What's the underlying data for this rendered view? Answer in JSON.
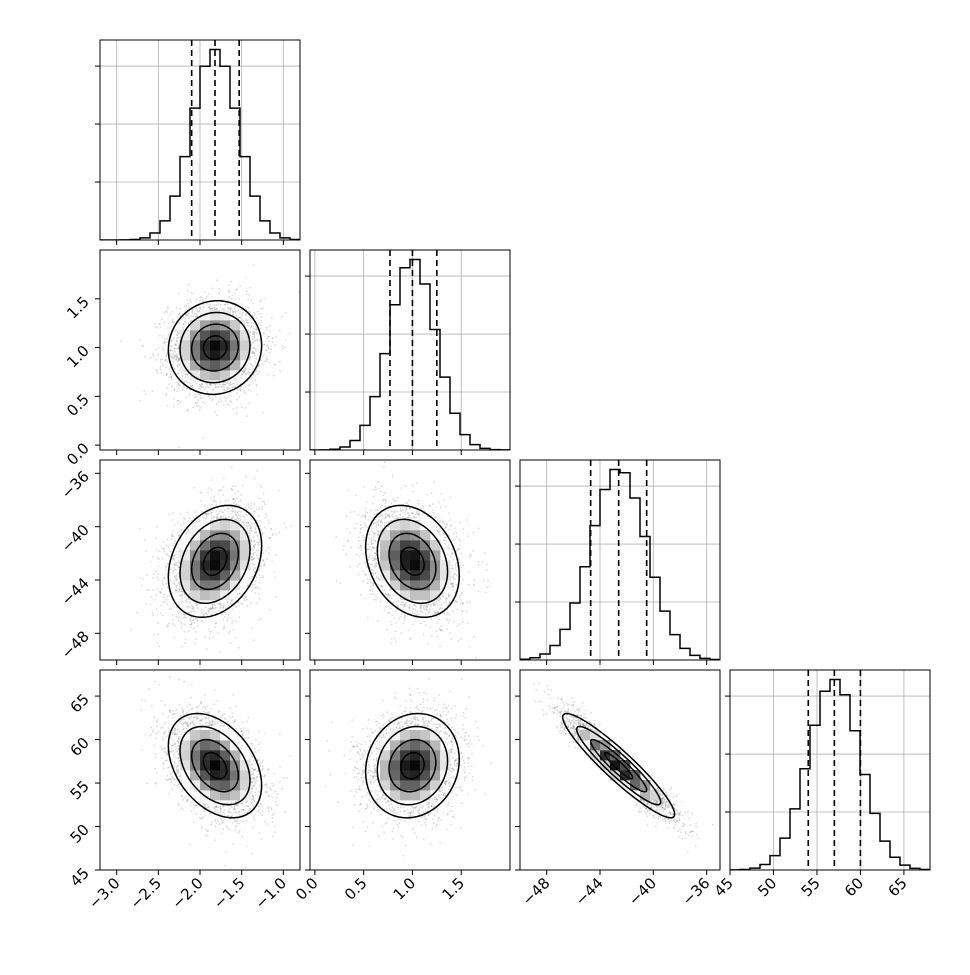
{
  "figure": {
    "type": "corner-plot",
    "background": "#ffffff",
    "ink": "#000000",
    "grid_color": "#b0b0b0",
    "scatter_color": "#7f7f7f"
  },
  "chart_data": {
    "type": "corner",
    "parameters": [
      {
        "range": [
          -3.2,
          -0.8
        ],
        "ticks": [
          -3.0,
          -2.5,
          -2.0,
          -1.5,
          -1.0
        ],
        "tick_labels": [
          "−3.0",
          "−2.5",
          "−2.0",
          "−1.5",
          "−1.0"
        ],
        "quantiles": [
          -2.1,
          -1.82,
          -1.53
        ],
        "mean": -1.82,
        "sd": 0.28
      },
      {
        "range": [
          -0.05,
          2.0
        ],
        "ticks": [
          0.0,
          0.5,
          1.0,
          1.5
        ],
        "tick_labels": [
          "0.0",
          "0.5",
          "1.0",
          "1.5"
        ],
        "quantiles": [
          0.77,
          1.0,
          1.25
        ],
        "mean": 1.0,
        "sd": 0.24
      },
      {
        "range": [
          -50,
          -35
        ],
        "ticks": [
          -48,
          -44,
          -40,
          -36
        ],
        "tick_labels": [
          "−48",
          "−44",
          "−40",
          "−36"
        ],
        "quantiles": [
          -44.7,
          -42.6,
          -40.5
        ],
        "mean": -42.6,
        "sd": 2.1
      },
      {
        "range": [
          45,
          68
        ],
        "ticks": [
          45,
          50,
          55,
          60,
          65
        ],
        "tick_labels": [
          "45",
          "50",
          "55",
          "60",
          "65"
        ],
        "quantiles": [
          54.0,
          57.0,
          60.0
        ],
        "mean": 57.0,
        "sd": 3.0
      }
    ],
    "correlations": [
      [
        1.0,
        0.05,
        0.28,
        -0.38
      ],
      [
        0.05,
        1.0,
        -0.25,
        0.12
      ],
      [
        0.28,
        -0.25,
        1.0,
        -0.93
      ],
      [
        -0.38,
        0.12,
        -0.93,
        1.0
      ]
    ],
    "histogram_bins": 20,
    "grid": true,
    "quantile_style": "dashed"
  }
}
